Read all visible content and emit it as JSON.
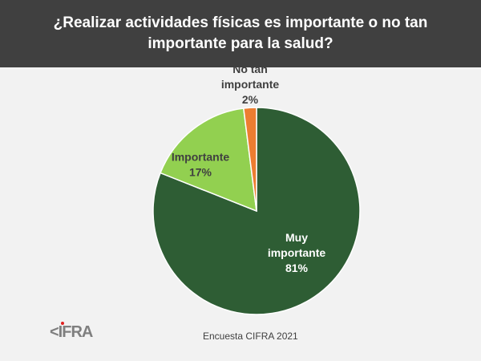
{
  "chart_data": {
    "type": "pie",
    "title": "¿Realizar actividades físicas es importante o no tan importante para la salud?",
    "slices": [
      {
        "label": "Muy importante",
        "label_lines": [
          "Muy",
          "importante"
        ],
        "value": 81,
        "value_label": "81%",
        "color": "#2e5d34",
        "text_color": "#ffffff"
      },
      {
        "label": "Importante",
        "label_lines": [
          "Importante"
        ],
        "value": 17,
        "value_label": "17%",
        "color": "#92d050",
        "text_color": "#404040"
      },
      {
        "label": "No tan importante",
        "label_lines": [
          "No tan",
          "importante"
        ],
        "value": 2,
        "value_label": "2%",
        "color": "#ed7d31",
        "text_color": "#404040"
      }
    ],
    "start": "top",
    "direction": "clockwise"
  },
  "footer": {
    "source": "Encuesta CIFRA 2021",
    "logo_text": "CIFRA"
  }
}
